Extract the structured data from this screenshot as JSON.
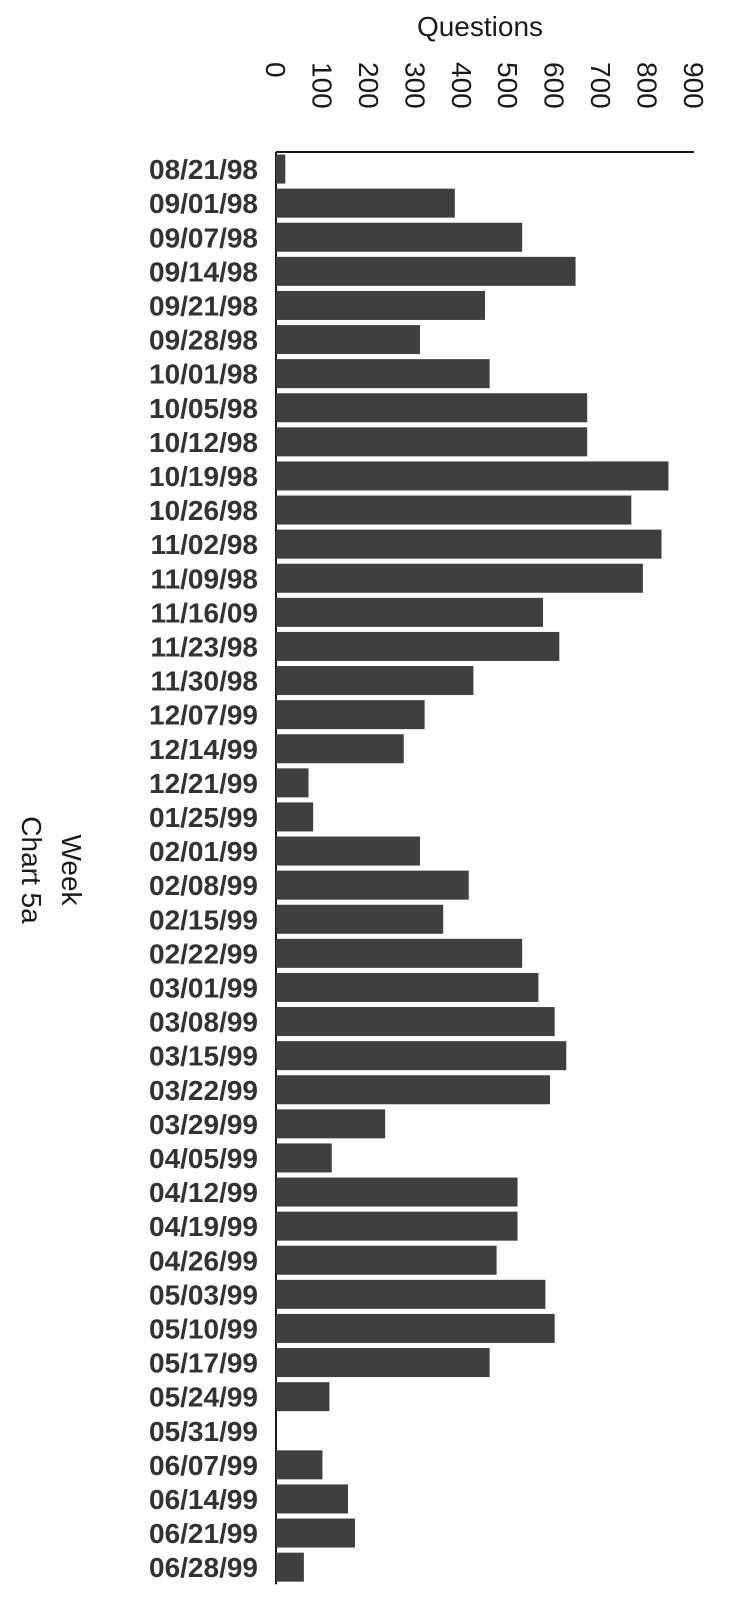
{
  "chart_data": {
    "type": "bar",
    "orientation": "horizontal",
    "title": "Chart 5a",
    "xlabel": "Questions",
    "ylabel": "Week",
    "xlim": [
      0,
      900
    ],
    "x_ticks": [
      0,
      100,
      200,
      300,
      400,
      500,
      600,
      700,
      800,
      900
    ],
    "grid": false,
    "legend": "none",
    "bar_color": "#3f3f3f",
    "categories": [
      "08/21/98",
      "09/01/98",
      "09/07/98",
      "09/14/98",
      "09/21/98",
      "09/28/98",
      "10/01/98",
      "10/05/98",
      "10/12/98",
      "10/19/98",
      "10/26/98",
      "11/02/98",
      "11/09/98",
      "11/16/09",
      "11/23/98",
      "11/30/98",
      "12/07/99",
      "12/14/99",
      "12/21/99",
      "01/25/99",
      "02/01/99",
      "02/08/99",
      "02/15/99",
      "02/22/99",
      "03/01/99",
      "03/08/99",
      "03/15/99",
      "03/22/99",
      "03/29/99",
      "04/05/99",
      "04/12/99",
      "04/19/99",
      "04/26/99",
      "05/03/99",
      "05/10/99",
      "05/17/99",
      "05/24/99",
      "05/31/99",
      "06/07/99",
      "06/14/99",
      "06/21/99",
      "06/28/99"
    ],
    "values": [
      20,
      385,
      530,
      645,
      450,
      310,
      460,
      670,
      670,
      845,
      765,
      830,
      790,
      575,
      610,
      425,
      320,
      275,
      70,
      80,
      310,
      415,
      360,
      530,
      565,
      600,
      625,
      590,
      235,
      120,
      520,
      520,
      475,
      580,
      600,
      460,
      115,
      0,
      100,
      155,
      170,
      60
    ]
  }
}
